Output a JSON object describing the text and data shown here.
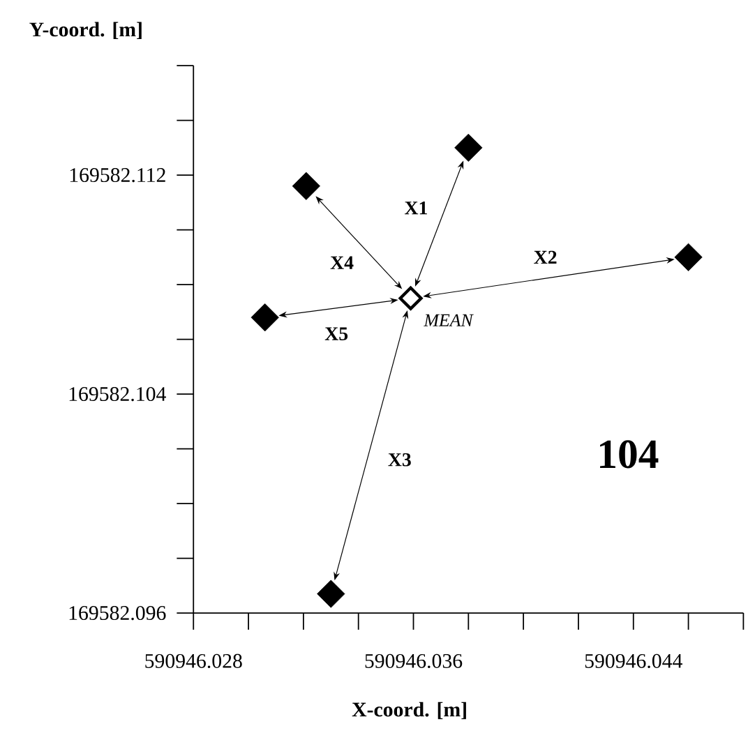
{
  "chart_data": {
    "type": "scatter",
    "xlabel": "X-coord. [m]",
    "ylabel": "Y-coord. [m]",
    "marker": "diamond",
    "series": [
      {
        "color": "#000000",
        "x": [
          590946.038,
          590946.046,
          590946.033,
          590946.0321,
          590946.0306
        ],
        "values": [
          169582.113,
          169582.109,
          169582.0967,
          169582.1116,
          169582.1068
        ]
      },
      {
        "name": "MEAN",
        "color": "#000000",
        "x": [
          590946.0359
        ],
        "values": [
          169582.1075
        ]
      }
    ],
    "annotations": [
      {
        "text": "X1",
        "x": 590946.0361,
        "y": 169582.1108
      },
      {
        "text": "X2",
        "x": 590946.0408,
        "y": 169582.109
      },
      {
        "text": "X3",
        "x": 590946.0355,
        "y": 169582.1016
      },
      {
        "text": "X4",
        "x": 590946.0334,
        "y": 169582.1088
      },
      {
        "text": "X5",
        "x": 590946.0332,
        "y": 169582.1062
      },
      "104"
    ],
    "xlim": [
      590946.028,
      590946.048
    ],
    "ylim": [
      169582.096,
      169582.116
    ],
    "xticks": [
      590946.028,
      {
        "value": 590946.03,
        "label": null
      },
      {
        "value": 590946.032,
        "label": null
      },
      {
        "value": 590946.034,
        "label": null
      },
      590946.036,
      {
        "value": 590946.038,
        "label": null
      },
      {
        "value": 590946.04,
        "label": null
      },
      {
        "value": 590946.042,
        "label": null
      },
      590946.044,
      {
        "value": 590946.046,
        "label": null
      },
      {
        "value": 590946.048,
        "label": null
      }
    ],
    "yticks": [
      169582.096,
      {
        "value": 169582.098,
        "label": null
      },
      {
        "value": 169582.1,
        "label": null
      },
      {
        "value": 169582.102,
        "label": null
      },
      169582.104,
      {
        "value": 169582.106,
        "label": null
      },
      {
        "value": 169582.108,
        "label": null
      },
      {
        "value": 169582.11,
        "label": null
      },
      169582.112,
      {
        "value": 169582.114,
        "label": null
      },
      {
        "value": 169582.116,
        "label": null
      }
    ],
    "grid": false
  }
}
